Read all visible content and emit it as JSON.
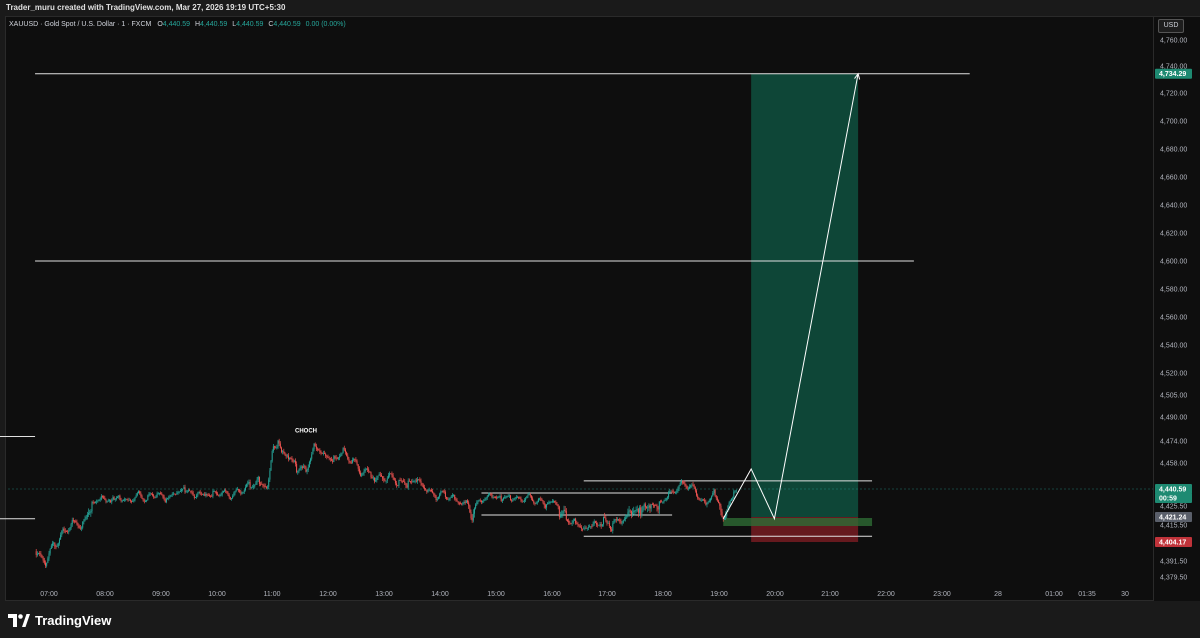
{
  "header": {
    "credit": "Trader_muru created with TradingView.com, Mar 27, 2026 19:19 UTC+5:30"
  },
  "legend": {
    "symbol": "XAUUSD · Gold Spot / U.S. Dollar · 1 · FXCM",
    "o_label": "O",
    "o": "4,440.59",
    "h_label": "H",
    "h": "4,440.59",
    "l_label": "L",
    "l": "4,440.59",
    "c_label": "C",
    "c": "4,440.59",
    "change": "0.00 (0.00%)"
  },
  "currency": "USD",
  "footer": {
    "brand": "TradingView"
  },
  "colors": {
    "up": "#26a69a",
    "down": "#ef5350",
    "target_zone": "#0f4a3a",
    "stop_zone": "#6b1a20",
    "line": "#e0e0e0",
    "bg": "#0e0e0e"
  },
  "chart_data": {
    "type": "candlestick",
    "symbol": "XAUUSD",
    "x_ticks": [
      "07:00",
      "08:00",
      "09:00",
      "10:00",
      "11:00",
      "12:00",
      "13:00",
      "14:00",
      "15:00",
      "16:00",
      "17:00",
      "18:00",
      "19:00",
      "20:00",
      "21:00",
      "22:00",
      "23:00",
      "28",
      "01:00",
      "01:35",
      "30"
    ],
    "y_ticks": [
      "4,760.00",
      "4,740.00",
      "4,720.00",
      "4,700.00",
      "4,680.00",
      "4,660.00",
      "4,640.00",
      "4,620.00",
      "4,600.00",
      "4,580.00",
      "4,560.00",
      "4,540.00",
      "4,520.00",
      "4,505.00",
      "4,490.00",
      "4,474.00",
      "4,458.00",
      "4,425.50",
      "4,415.50",
      "4,391.50",
      "4,379.50"
    ],
    "price_labels": [
      {
        "text": "4,734.29",
        "price": 4734.29,
        "color": "#1e8a72"
      },
      {
        "text": "4,440.59",
        "price": 4440.59,
        "color": "#1e8a72"
      },
      {
        "text": "00:59",
        "price": 4432.6,
        "color": "#1e8a72"
      },
      {
        "text": "4,421.24",
        "price": 4421.24,
        "color": "#5a5f6a"
      },
      {
        "text": "4,404.17",
        "price": 4404.17,
        "color": "#c0333a"
      }
    ],
    "close_path": [
      [
        "06:45",
        4398
      ],
      [
        "06:55",
        4390
      ],
      [
        "07:05",
        4402
      ],
      [
        "07:15",
        4410
      ],
      [
        "07:25",
        4418
      ],
      [
        "07:35",
        4416
      ],
      [
        "07:45",
        4426
      ],
      [
        "07:55",
        4432
      ],
      [
        "08:05",
        4428
      ],
      [
        "08:15",
        4434
      ],
      [
        "08:25",
        4430
      ],
      [
        "08:35",
        4436
      ],
      [
        "08:45",
        4432
      ],
      [
        "08:55",
        4437
      ],
      [
        "09:05",
        4431
      ],
      [
        "09:15",
        4435
      ],
      [
        "09:25",
        4440
      ],
      [
        "09:35",
        4436
      ],
      [
        "09:45",
        4438
      ],
      [
        "09:55",
        4435
      ],
      [
        "10:05",
        4437
      ],
      [
        "10:15",
        4434
      ],
      [
        "10:25",
        4438
      ],
      [
        "10:35",
        4442
      ],
      [
        "10:45",
        4446
      ],
      [
        "10:55",
        4442
      ],
      [
        "11:00",
        4468
      ],
      [
        "11:05",
        4472
      ],
      [
        "11:15",
        4462
      ],
      [
        "11:25",
        4456
      ],
      [
        "11:35",
        4452
      ],
      [
        "11:45",
        4470
      ],
      [
        "11:55",
        4466
      ],
      [
        "12:05",
        4460
      ],
      [
        "12:15",
        4466
      ],
      [
        "12:25",
        4460
      ],
      [
        "12:35",
        4452
      ],
      [
        "12:45",
        4450
      ],
      [
        "12:55",
        4448
      ],
      [
        "13:05",
        4450
      ],
      [
        "13:15",
        4446
      ],
      [
        "13:25",
        4444
      ],
      [
        "13:35",
        4446
      ],
      [
        "13:45",
        4440
      ],
      [
        "13:55",
        4434
      ],
      [
        "14:05",
        4436
      ],
      [
        "14:15",
        4432
      ],
      [
        "14:25",
        4430
      ],
      [
        "14:35",
        4422
      ],
      [
        "14:45",
        4430
      ],
      [
        "14:55",
        4434
      ],
      [
        "15:05",
        4432
      ],
      [
        "15:15",
        4434
      ],
      [
        "15:25",
        4432
      ],
      [
        "15:35",
        4434
      ],
      [
        "15:45",
        4430
      ],
      [
        "15:55",
        4428
      ],
      [
        "16:05",
        4426
      ],
      [
        "16:15",
        4420
      ],
      [
        "16:25",
        4418
      ],
      [
        "16:35",
        4414
      ],
      [
        "16:45",
        4416
      ],
      [
        "16:55",
        4418
      ],
      [
        "17:05",
        4415
      ],
      [
        "17:15",
        4418
      ],
      [
        "17:25",
        4422
      ],
      [
        "17:35",
        4424
      ],
      [
        "17:45",
        4428
      ],
      [
        "17:55",
        4426
      ],
      [
        "18:05",
        4434
      ],
      [
        "18:15",
        4440
      ],
      [
        "18:25",
        4444
      ],
      [
        "18:35",
        4438
      ],
      [
        "18:45",
        4426
      ],
      [
        "18:55",
        4438
      ],
      [
        "19:05",
        4420
      ],
      [
        "19:15",
        4434
      ],
      [
        "19:19",
        4440.59
      ]
    ],
    "horizontal_lines": [
      {
        "price": 4734.29,
        "from": "06:45",
        "to": "23:30"
      },
      {
        "price": 4600,
        "from": "06:45",
        "to": "22:30"
      },
      {
        "price": 4477,
        "from": "06:45",
        "to": "00:30"
      },
      {
        "price": 4420,
        "from": "06:45",
        "to": "00:30"
      }
    ],
    "boxes": [
      {
        "price_top": 4437,
        "price_bottom": 4422,
        "from": "14:45",
        "to": "18:10"
      },
      {
        "price_top": 4446,
        "price_bottom": 4408,
        "from": "16:35",
        "to": "21:45"
      }
    ],
    "position": {
      "type": "long",
      "entry": 4421.24,
      "target": 4734.29,
      "stop": 4404.17,
      "from": "19:35",
      "to": "21:30"
    },
    "projection": [
      [
        "19:05",
        4420
      ],
      [
        "19:35",
        4454
      ],
      [
        "20:00",
        4420
      ],
      [
        "21:30",
        4734.29
      ]
    ],
    "annotations": [
      {
        "text": "CHOCH",
        "x": "12:00",
        "price": 4477
      }
    ]
  }
}
